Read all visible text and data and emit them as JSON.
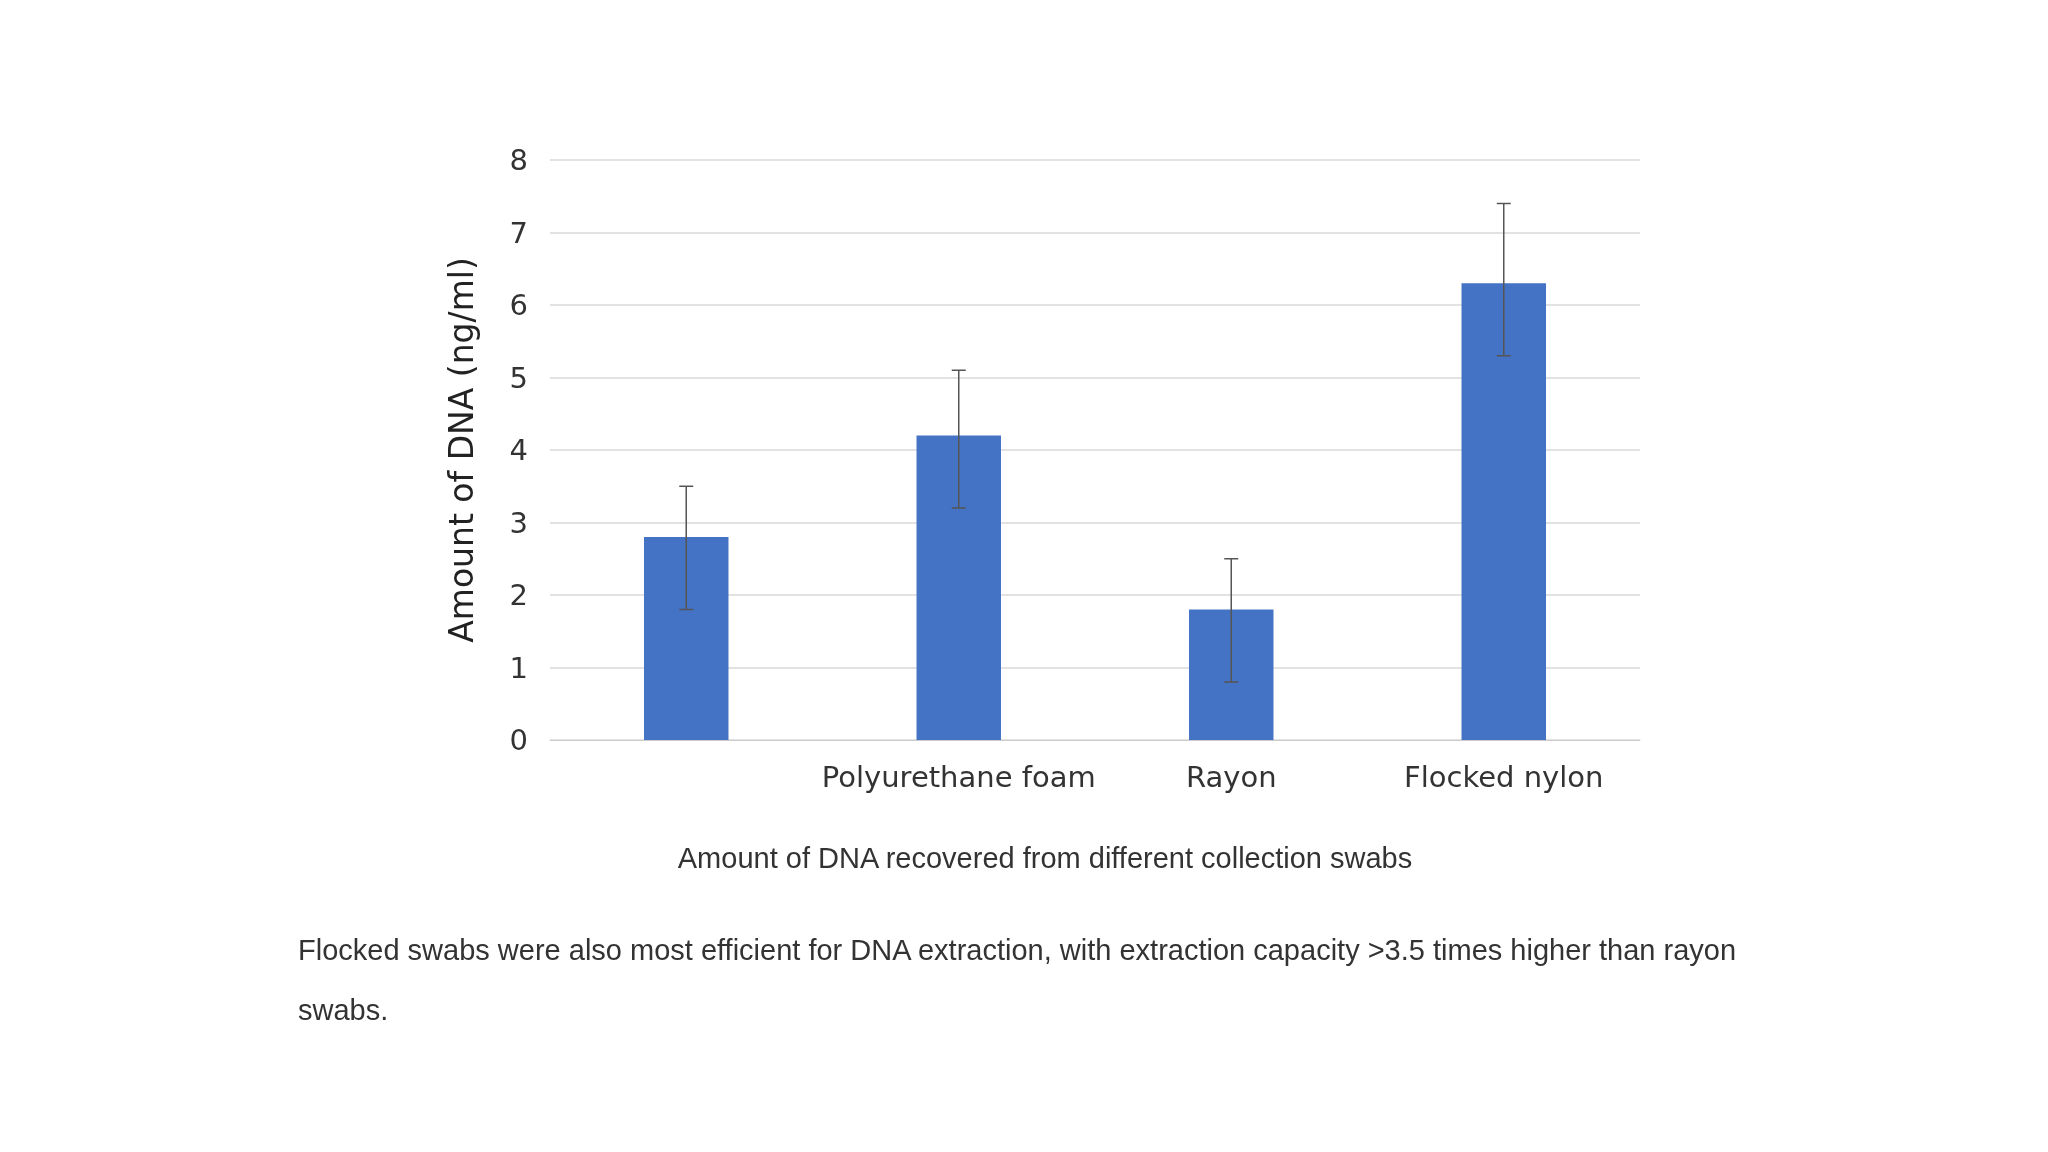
{
  "chart_data": {
    "type": "bar",
    "ylabel": "Amount of DNA (ng/ml)",
    "categories": [
      null,
      "Polyurethane foam",
      "Rayon",
      "Flocked nylon"
    ],
    "values": [
      2.8,
      4.2,
      1.8,
      6.3
    ],
    "errors": [
      [
        1.8,
        3.5
      ],
      [
        3.2,
        5.1
      ],
      [
        0.8,
        2.5
      ],
      [
        5.3,
        7.4
      ]
    ],
    "color": "#4472c4",
    "ylim": [
      0,
      8
    ],
    "yticks": [
      0,
      1,
      2,
      3,
      4,
      5,
      6,
      7,
      8
    ],
    "grid": "y",
    "annotations": [
      "Amount of DNA recovered from different collection swabs",
      "Flocked swabs were also most efficient for DNA extraction, with extraction capacity >3.5 times higher than rayon swabs."
    ]
  }
}
